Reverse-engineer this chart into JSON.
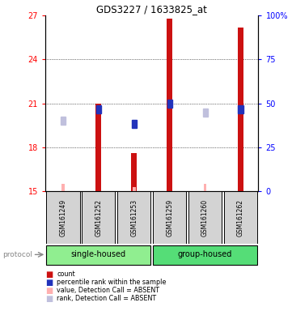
{
  "title": "GDS3227 / 1633825_at",
  "samples": [
    "GSM161249",
    "GSM161252",
    "GSM161253",
    "GSM161259",
    "GSM161260",
    "GSM161262"
  ],
  "ylim_left": [
    15,
    27
  ],
  "yticks_left": [
    15,
    18,
    21,
    24,
    27
  ],
  "yticks_right": [
    0,
    25,
    50,
    75,
    100
  ],
  "ytick_labels_right": [
    "0",
    "25",
    "50",
    "75",
    "100%"
  ],
  "red_bars": {
    "GSM161249": null,
    "GSM161252": 21.0,
    "GSM161253": 17.6,
    "GSM161259": 26.8,
    "GSM161260": null,
    "GSM161262": 26.2
  },
  "pink_bars": {
    "GSM161249": 15.5,
    "GSM161252": null,
    "GSM161253": 15.3,
    "GSM161259": null,
    "GSM161260": 15.5,
    "GSM161262": null
  },
  "blue_squares": {
    "GSM161252": 20.6,
    "GSM161253": 19.6,
    "GSM161259": 21.0,
    "GSM161262": 20.6
  },
  "lavender_squares": {
    "GSM161249": 19.8,
    "GSM161260": 20.4
  },
  "group_colors": {
    "single-housed": "#90EE90",
    "group-housed": "#55DD77"
  },
  "red_color": "#CC1111",
  "pink_color": "#FFB0B0",
  "blue_color": "#2233BB",
  "lavender_color": "#C0C0DD",
  "background_sample": "#D3D3D3",
  "bar_base": 15.0
}
